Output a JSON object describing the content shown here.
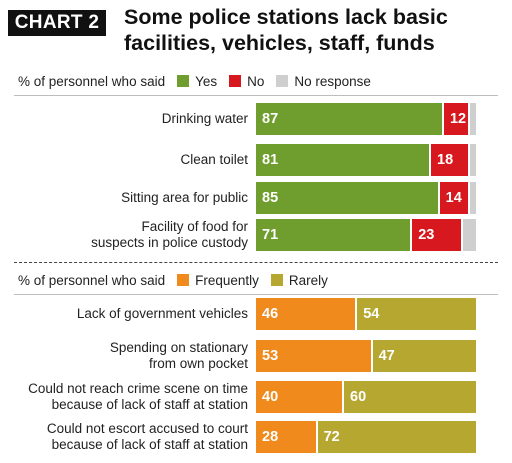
{
  "header": {
    "tag": "CHART 2",
    "title_line1": "Some police stations lack basic",
    "title_line2": "facilities, vehicles, staff, funds"
  },
  "chart_data": [
    {
      "type": "bar",
      "stacked": true,
      "orientation": "horizontal",
      "legend_lead": "% of personnel who said",
      "categories": [
        [
          "Drinking water"
        ],
        [
          "Clean toilet"
        ],
        [
          "Sitting area for public"
        ],
        [
          "Facility of food for",
          "suspects in police custody"
        ]
      ],
      "series": [
        {
          "name": "Yes",
          "values": [
            87,
            81,
            85,
            71
          ],
          "labels": [
            "87",
            "81",
            "85",
            "71"
          ],
          "color": "#6f9e2e"
        },
        {
          "name": "No",
          "values": [
            12,
            18,
            14,
            23
          ],
          "labels": [
            "12",
            "18",
            "14",
            "23"
          ],
          "color": "#d7191f"
        },
        {
          "name": "No response",
          "values": [
            1,
            1,
            1,
            6
          ],
          "labels": [
            "",
            "",
            "",
            ""
          ],
          "color": "#cfcfcf"
        }
      ],
      "xlim": [
        0,
        100
      ]
    },
    {
      "type": "bar",
      "stacked": true,
      "orientation": "horizontal",
      "legend_lead": "% of personnel who said",
      "categories": [
        [
          "Lack of government vehicles"
        ],
        [
          "Spending on stationary",
          "from own pocket"
        ],
        [
          "Could not reach crime scene on time",
          "because of lack of staff at station"
        ],
        [
          "Could not escort accused to court",
          "because of lack of staff at station"
        ]
      ],
      "series": [
        {
          "name": "Frequently",
          "values": [
            46,
            53,
            40,
            28
          ],
          "labels": [
            "46",
            "53",
            "40",
            "28"
          ],
          "color": "#f08a1c"
        },
        {
          "name": "Rarely",
          "values": [
            54,
            47,
            60,
            72
          ],
          "labels": [
            "54",
            "47",
            "60",
            "72"
          ],
          "color": "#b5a72f"
        }
      ],
      "xlim": [
        0,
        100
      ]
    }
  ]
}
